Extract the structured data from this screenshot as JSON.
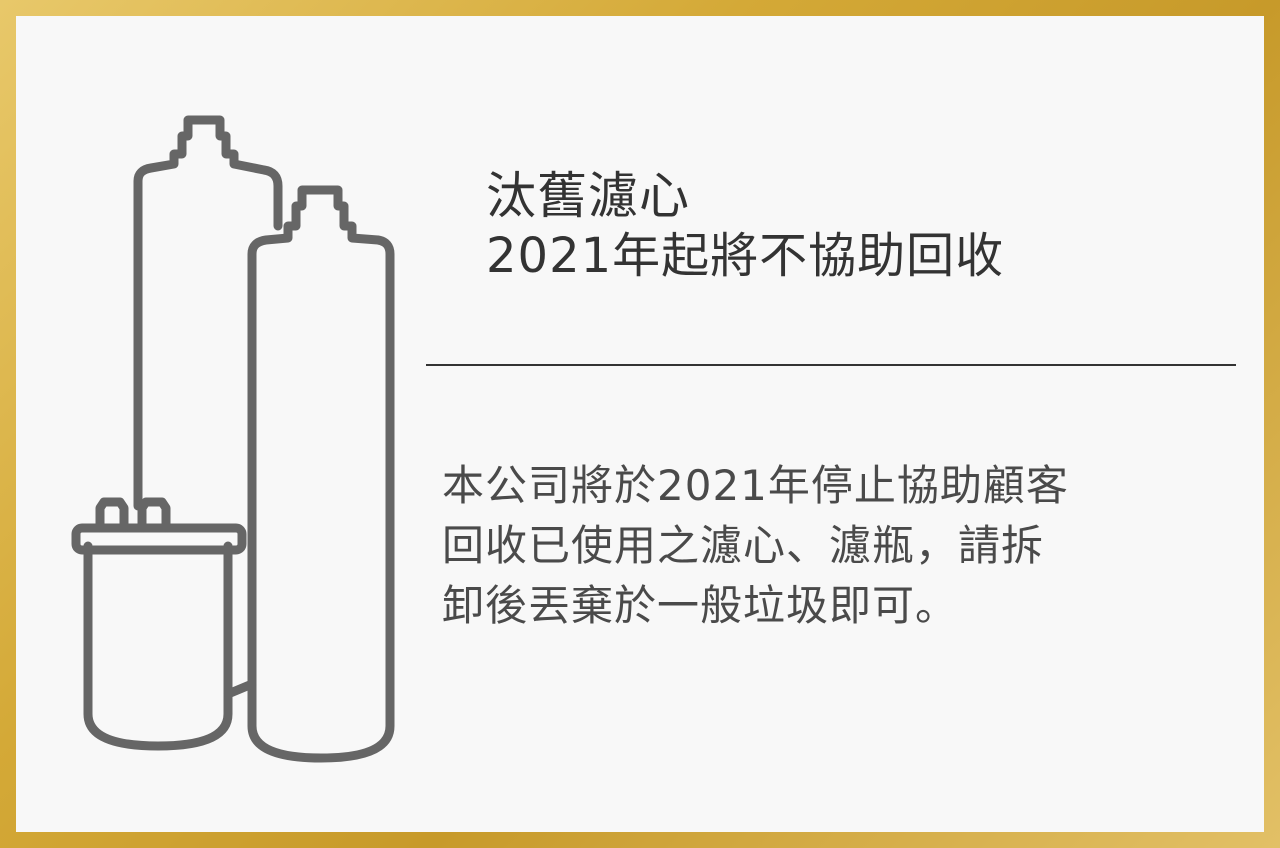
{
  "colors": {
    "frame_gold": "#d4a937",
    "card_background": "#f8f8f8",
    "text_dark": "#333333",
    "text_body": "#4a4a4a",
    "icon_stroke": "#666666"
  },
  "header": {
    "title_line1": "汰舊濾心",
    "title_line2": "2021年起將不協助回收"
  },
  "body": {
    "lines": [
      "本公司將於2021年停止協助顧客",
      "回收已使用之濾心、濾瓶，請拆",
      "卸後丟棄於一般垃圾即可。"
    ]
  },
  "illustration": {
    "icon": "water-filter-cartridges-icon"
  }
}
